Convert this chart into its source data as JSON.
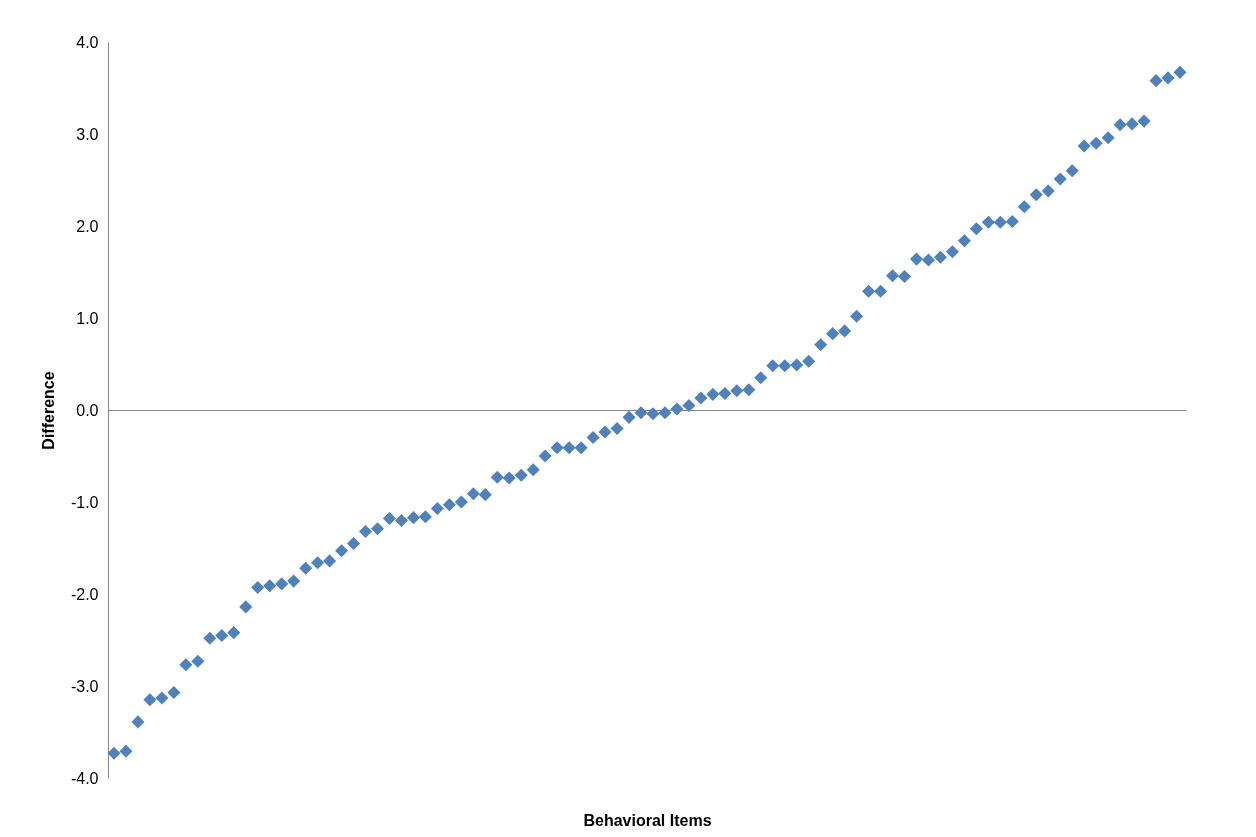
{
  "chart_data": {
    "type": "scatter",
    "xlabel": "Behavioral Items",
    "ylabel": "Difference",
    "categories": [
      null,
      null,
      null,
      null,
      null,
      null,
      null,
      null,
      null,
      null,
      null,
      null,
      null,
      null,
      null,
      null,
      null,
      null,
      null,
      null,
      null,
      null,
      null,
      null,
      null,
      null,
      null,
      null,
      null,
      null,
      null,
      null,
      null,
      null,
      null,
      null,
      null,
      null,
      null,
      null,
      null,
      null,
      null,
      null,
      null,
      null,
      null,
      null,
      null,
      null,
      null,
      null,
      null,
      null,
      null,
      null,
      null,
      null,
      null,
      null,
      null,
      null,
      null,
      null,
      null,
      null,
      null,
      null,
      null,
      null,
      null,
      null,
      null,
      null,
      null,
      null,
      null,
      null,
      null,
      null,
      null,
      null,
      null,
      null,
      null,
      null,
      null,
      null,
      null,
      null
    ],
    "series": [
      {
        "color": "#4f81bd",
        "values": [
          -3.73,
          -3.71,
          -3.39,
          -3.15,
          -3.13,
          -3.07,
          -2.77,
          -2.73,
          -2.48,
          -2.45,
          -2.42,
          -2.14,
          -1.93,
          -1.91,
          -1.89,
          -1.86,
          -1.72,
          -1.66,
          -1.64,
          -1.53,
          -1.45,
          -1.32,
          -1.29,
          -1.18,
          -1.2,
          -1.17,
          -1.16,
          -1.07,
          -1.03,
          -1.0,
          -0.91,
          -0.92,
          -0.73,
          -0.74,
          -0.71,
          -0.65,
          -0.5,
          -0.41,
          -0.41,
          -0.41,
          -0.3,
          -0.24,
          -0.2,
          -0.08,
          -0.03,
          -0.04,
          -0.03,
          0.01,
          0.05,
          0.13,
          0.17,
          0.18,
          0.21,
          0.22,
          0.35,
          0.48,
          0.48,
          0.49,
          0.53,
          0.71,
          0.83,
          0.86,
          1.02,
          1.29,
          1.29,
          1.46,
          1.45,
          1.64,
          1.63,
          1.66,
          1.72,
          1.84,
          1.97,
          2.04,
          2.04,
          2.05,
          2.21,
          2.34,
          2.38,
          2.51,
          2.6,
          2.87,
          2.9,
          2.96,
          3.1,
          3.11,
          3.14,
          3.58,
          3.61,
          3.67
        ]
      }
    ],
    "ylim": [
      -4,
      4
    ],
    "yticks": [
      {
        "value": -4,
        "label": "-4.0"
      },
      {
        "value": -3,
        "label": "-3.0"
      },
      {
        "value": -2,
        "label": "-2.0"
      },
      {
        "value": -1,
        "label": "-1.0"
      },
      {
        "value": 0,
        "label": "0.0"
      },
      {
        "value": 1,
        "label": "1.0"
      },
      {
        "value": 2,
        "label": "2.0"
      },
      {
        "value": 3,
        "label": "3.0"
      },
      {
        "value": 4,
        "label": "4.0"
      }
    ],
    "tick_labels": "y",
    "marker": "diamond"
  }
}
